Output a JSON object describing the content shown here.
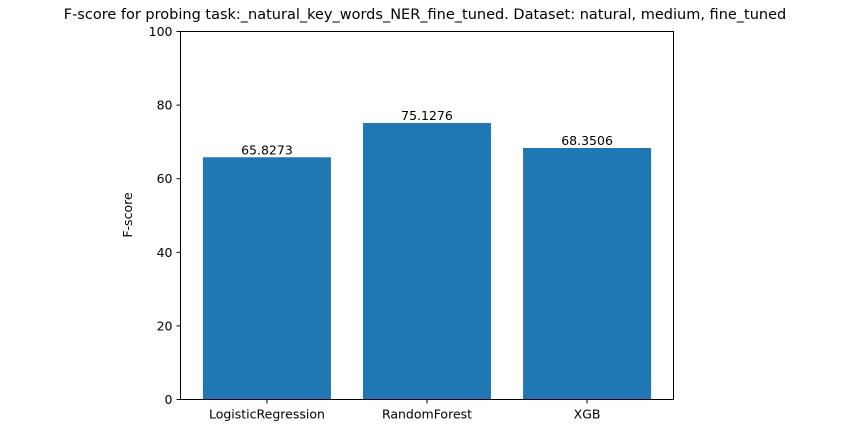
{
  "chart_data": {
    "type": "bar",
    "title": "F-score for probing task:_natural_key_words_NER_fine_tuned. Dataset: natural, medium, fine_tuned",
    "xlabel": "",
    "ylabel": "F-score",
    "categories": [
      "LogisticRegression",
      "RandomForest",
      "XGB"
    ],
    "values": [
      65.8273,
      75.1276,
      68.3506
    ],
    "value_labels": [
      "65.8273",
      "75.1276",
      "68.3506"
    ],
    "ylim": [
      0,
      100
    ],
    "yticks": [
      0,
      20,
      40,
      60,
      80,
      100
    ],
    "grid": false,
    "legend": "none",
    "bar_color": "#1f77b4"
  }
}
